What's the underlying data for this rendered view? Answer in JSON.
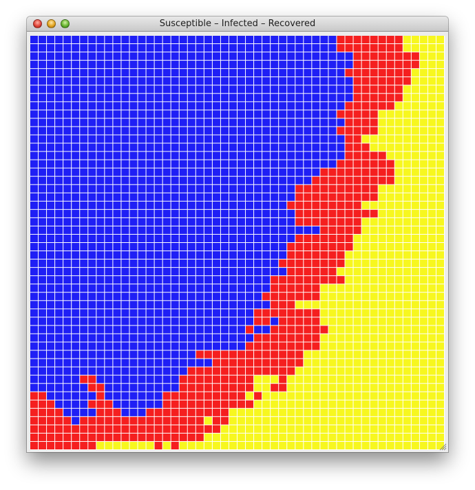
{
  "window": {
    "title": "Susceptible – Infected – Recovered",
    "buttons": [
      "close-icon",
      "minimize-icon",
      "zoom-icon"
    ]
  },
  "colors": {
    "susceptible": "#1f1ff5",
    "infected": "#f51f1f",
    "recovered": "#f7f71f",
    "gridline": "#ffffff"
  },
  "grid": {
    "rows": 50,
    "cols": 50,
    "legend": "S = susceptible (blue), I = infected (red), R = recovered (yellow)",
    "cells": [
      "SSSSSSSSSSSSSSSSSSSSSSSSSSSSSSSSSSSSSIIIIIIIIRRRRR",
      "SSSSSSSSSSSSSSSSSSSSSSSSSSSSSSSSSSSSSIIIIIIIIRRRRR",
      "SSSSSSSSSSSSSSSSSSSSSSSSSSSSSSSSSSSSSSSIIIIIIIIRRR",
      "SSSSSSSSSSSSSSSSSSSSSSSSSSSSSSSSSSSSSSSIIIIIIIIRRR",
      "SSSSSSSSSSSSSSSSSSSSSSSSSSSSSSSSSSSSSSIIIIIIIIRRRR",
      "SSSSSSSSSSSSSSSSSSSSSSSSSSSSSSSSSSSSSSSIIIIIIIRRRR",
      "SSSSSSSSSSSSSSSSSSSSSSSSSSSSSSSSSSSSSSSIIIIIIRRRRR",
      "SSSSSSSSSSSSSSSSSSSSSSSSSSSSSSSSSSSSSSSIIIIIIRRRRR",
      "SSSSSSSSSSSSSSSSSSSSSSSSSSSSSSSSSSSSSSIIIIIIRRRRRR",
      "SSSSSSSSSSSSSSSSSSSSSSSSSSSSSSSSSSSSSIIIIIRRRRRRRR",
      "SSSSSSSSSSSSSSSSSSSSSSSSSSSSSSSSSSSSSSIIIIRRRRRRRR",
      "SSSSSSSSSSSSSSSSSSSSSSSSSSSSSSSSSSSSSIIIIIRRRRRRRR",
      "SSSSSSSSSSSSSSSSSSSSSSSSSSSSSSSSSSSSSSIIRRRRRRRRRR",
      "SSSSSSSSSSSSSSSSSSSSSSSSSSSSSSSSSSSSSSIIIRRRRRRRRR",
      "SSSSSSSSSSSSSSSSSSSSSSSSSSSSSSSSSSSSSSIIIIIRRRRRRR",
      "SSSSSSSSSSSSSSSSSSSSSSSSSSSSSSSSSSSSSIIIIIIIRRRRRR",
      "SSSSSSSSSSSSSSSSSSSSSSSSSSSSSSSSSSSIIIIIIIIIRRRRRR",
      "SSSSSSSSSSSSSSSSSSSSSSSSSSSSSSSSSSIIIIIIIIIIRRRRRR",
      "SSSSSSSSSSSSSSSSSSSSSSSSSSSSSSSSIIIIIIIIIIRRRRRRRR",
      "SSSSSSSSSSSSSSSSSSSSSSSSSSSSSSSSIIIIIIIIIIRRRRRRRR",
      "SSSSSSSSSSSSSSSSSSSSSSSSSSSSSSSIIIIIIIIIRRRRRRRRRR",
      "SSSSSSSSSSSSSSSSSSSSSSSSSSSSSSSSIIIIIIIIIIRRRRRRRR",
      "SSSSSSSSSSSSSSSSSSSSSSSSSSSSSSSSIIIIIIIIRRRRRRRRRR",
      "SSSSSSSSSSSSSSSSSSSSSSSSSSSSSSSSSSSIIIIIRRRRRRRRRR",
      "SSSSSSSSSSSSSSSSSSSSSSSSSSSSSSSSIIIIIIIRRRRRRRRRRR",
      "SSSSSSSSSSSSSSSSSSSSSSSSSSSSSSSIIIIIIIIRRRRRRRRRRR",
      "SSSSSSSSSSSSSSSSSSSSSSSSSSSSSSSIIIIIIIRRRRRRRRRRRR",
      "SSSSSSSSSSSSSSSSSSSSSSSSSSSSSSIIIIIIIIRRRRRRRRRRRR",
      "SSSSSSSSSSSSSSSSSSSSSSSSSSSSSSSIIIIIIRRRRRRRRRRRRR",
      "SSSSSSSSSSSSSSSSSSSSSSSSSSSSSIIIIIIIIIRRRRRRRRRRRR",
      "SSSSSSSSSSSSSSSSSSSSSSSSSSSSSIIIIIIRRRRRRRRRRRRRRR",
      "SSSSSSSSSSSSSSSSSSSSSSSSSSSSIIIIIIIRRRRRRRRRRRRRRR",
      "SSSSSSSSSSSSSSSSSSSSSSSSSSSSSIIIRRRRRRRRRRRRRRRRRR",
      "SSSSSSSSSSSSSSSSSSSSSSSSSSSIIIIIIIIRRRRRRRRRRRRRRR",
      "SSSSSSSSSSSSSSSSSSSSSSSSSSSIISIIIIIRRRRRRRRRRRRRRR",
      "SSSSSSSSSSSSSSSSSSSSSSSSSSISSIIIIIIIRRRRRRRRRRRRRR",
      "SSSSSSSSSSSSSSSSSSSSSSSSSSSIIIIIIIIRRRRRRRRRRRRRRR",
      "SSSSSSSSSSSSSSSSSSSSSSSSSSIIIIIIIIIRRRRRRRRRRRRRRR",
      "SSSSSSSSSSSSSSSSSSSSIIIIIIIIIIIIIRRRRRRRRRRRRRRRRR",
      "SSSSSSSSSSSSSSSSSSSSSSIIIIIIIIIIIRRRRRRRRRRRRRRRRR",
      "SSSSSSSSSSSSSSSSSSSIIIIIIIIIIIIIRRRRRRRRRRRRRRRRRR",
      "SSSSSSIISSSSSSSSSSIIIIIIIIIRRRIRRRRRRRRRRRRRRRRRRR",
      "SSSSSSSIISSSSSSSSSIIIIIIIIIRRIIRRRRRRRRRRRRRRRRRRR",
      "IISSSSSSISSSSSSSIIIIIIIIIIRIRRRRRRRRRRRRRRRRRRRRRR",
      "IIISSSSIIISSSSSSIIIIIIIIIIIRRRRRRRRRRRRRRRRRRRRRRR",
      "IIIISSSSIIISSSIIIIIIIIIIRRRRRRRRRRRRRRRRRRRRRRRRRR",
      "IIIIISIIIIIIIIIIIIIIIRIIRRRRRRRRRRRRRRRRRRRRRRRRRR",
      "IIIIIIIIIIIIIIIIIIIIIIIRRRRRRRRRRRRRRRRRRRRRRRRRRR",
      "IIIIIIIIIIIIIIIIIIIIIRRRRRRRRRRRRRRRRRRRRRRRRRRRRR",
      "IIIIIIIIRRRRRRRIRIRRRRRRRRRRRRRRRRRRRRRRRRRRRRRRRR"
    ]
  }
}
